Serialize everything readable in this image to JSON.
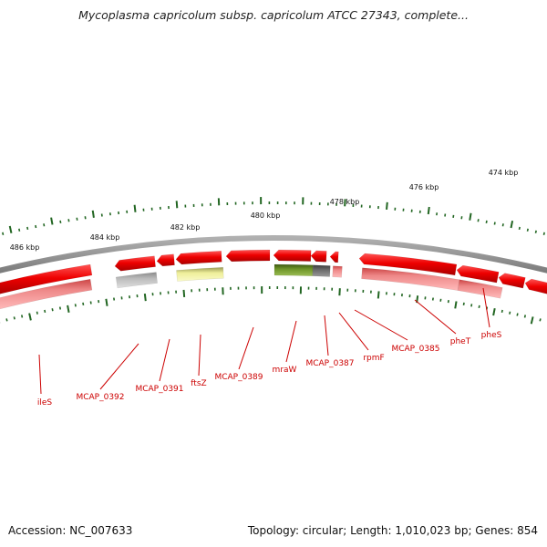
{
  "header": {
    "title": "Mycoplasma capricolum subsp. capricolum ATCC 27343, complete..."
  },
  "footer": {
    "accession": "Accession: NC_007633",
    "summary": "Topology: circular; Length: 1,010,023 bp; Genes: 854"
  },
  "scale_ticks": [
    {
      "label": "486 kbp"
    },
    {
      "label": "484 kbp"
    },
    {
      "label": "482 kbp"
    },
    {
      "label": "480 kbp"
    },
    {
      "label": "478 kbp"
    },
    {
      "label": "476 kbp"
    },
    {
      "label": "474 kbp"
    }
  ],
  "gene_labels": [
    {
      "name": "ileS"
    },
    {
      "name": "MCAP_0392"
    },
    {
      "name": "MCAP_0391"
    },
    {
      "name": "ftsZ"
    },
    {
      "name": "MCAP_0389"
    },
    {
      "name": "mraW"
    },
    {
      "name": "MCAP_0387"
    },
    {
      "name": "rpmF"
    },
    {
      "name": "MCAP_0385"
    },
    {
      "name": "pheT"
    },
    {
      "name": "pheS"
    }
  ],
  "colors": {
    "gene_red": "#ee0000",
    "gene_pink": "#ee8888",
    "gray_gene": "#aaaaaa",
    "yellow_gene": "#eeee99",
    "green_gene": "#66881f",
    "dark_gray_gene": "#666666",
    "backbone": "#888888",
    "tick_green": "#226622",
    "label_red": "#cc0000"
  }
}
